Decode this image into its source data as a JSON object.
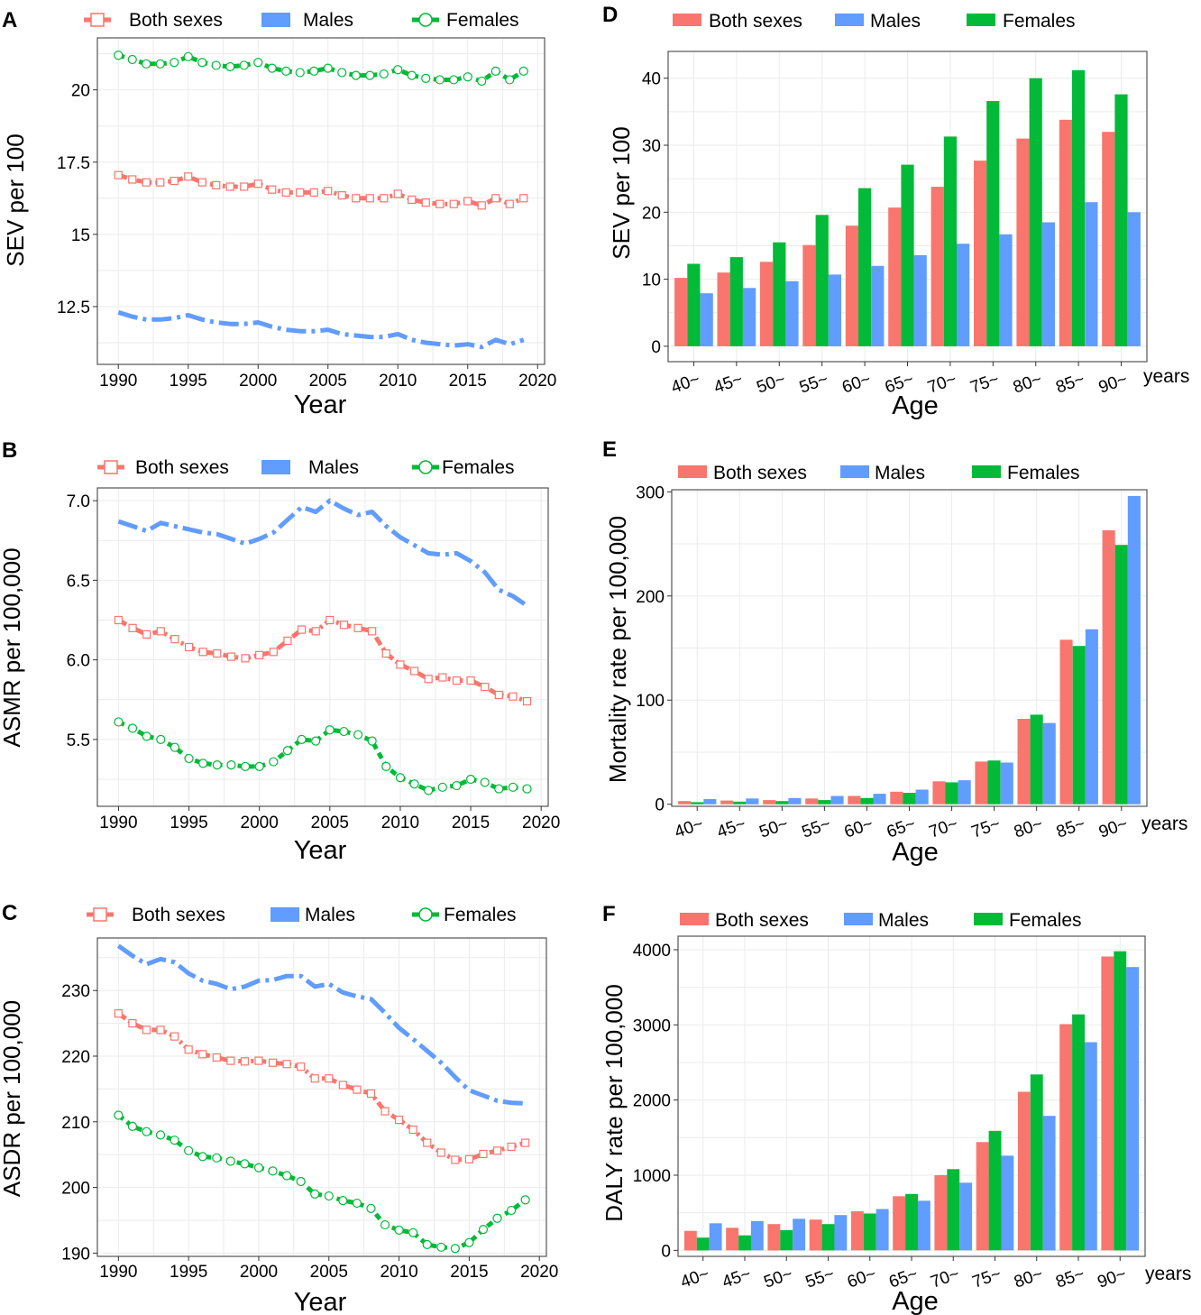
{
  "colors": {
    "both": "#F8766D",
    "males": "#619CFF",
    "females": "#00BA38"
  },
  "chart_data": [
    {
      "id": "A",
      "type": "line",
      "panel_label": "A",
      "title": "",
      "xlabel": "Year",
      "ylabel": "SEV per 100",
      "xlim": [
        1988.5,
        2020.5
      ],
      "ylim": [
        10.5,
        21.8
      ],
      "xticks": [
        1990,
        1995,
        2000,
        2005,
        2010,
        2015,
        2020
      ],
      "xtick_labels": [
        "1990",
        "1995",
        "2000",
        "2005",
        "2010",
        "2015",
        "2020"
      ],
      "yticks": [
        12.5,
        15,
        17.5,
        20
      ],
      "ytick_labels": [
        "12.5",
        "15",
        "17.5",
        "20"
      ],
      "legend": [
        "Both sexes",
        "Males",
        "Females"
      ],
      "x": [
        1990,
        1991,
        1992,
        1993,
        1994,
        1995,
        1996,
        1997,
        1998,
        1999,
        2000,
        2001,
        2002,
        2003,
        2004,
        2005,
        2006,
        2007,
        2008,
        2009,
        2010,
        2011,
        2012,
        2013,
        2014,
        2015,
        2016,
        2017,
        2018,
        2019
      ],
      "series": [
        {
          "name": "Both sexes",
          "values": [
            17.05,
            16.9,
            16.8,
            16.8,
            16.85,
            17.0,
            16.8,
            16.7,
            16.65,
            16.65,
            16.75,
            16.55,
            16.45,
            16.45,
            16.45,
            16.5,
            16.35,
            16.25,
            16.25,
            16.25,
            16.4,
            16.2,
            16.1,
            16.05,
            16.05,
            16.15,
            16.0,
            16.25,
            16.05,
            16.25
          ]
        },
        {
          "name": "Males",
          "values": [
            12.3,
            12.15,
            12.05,
            12.05,
            12.1,
            12.2,
            12.05,
            11.95,
            11.9,
            11.9,
            11.95,
            11.8,
            11.7,
            11.65,
            11.65,
            11.7,
            11.55,
            11.5,
            11.45,
            11.45,
            11.55,
            11.35,
            11.25,
            11.2,
            11.15,
            11.2,
            11.1,
            11.35,
            11.2,
            11.35
          ]
        },
        {
          "name": "Females",
          "values": [
            21.2,
            21.05,
            20.9,
            20.9,
            20.95,
            21.15,
            20.95,
            20.85,
            20.8,
            20.85,
            20.95,
            20.75,
            20.65,
            20.6,
            20.65,
            20.75,
            20.6,
            20.5,
            20.5,
            20.55,
            20.7,
            20.5,
            20.4,
            20.35,
            20.35,
            20.45,
            20.3,
            20.65,
            20.35,
            20.65
          ]
        }
      ]
    },
    {
      "id": "B",
      "type": "line",
      "panel_label": "B",
      "title": "",
      "xlabel": "Year",
      "ylabel": "ASMR per 100,000",
      "xlim": [
        1988.5,
        2020.5
      ],
      "ylim": [
        5.08,
        7.08
      ],
      "xticks": [
        1990,
        1995,
        2000,
        2005,
        2010,
        2015,
        2020
      ],
      "xtick_labels": [
        "1990",
        "1995",
        "2000",
        "2005",
        "2010",
        "2015",
        "2020"
      ],
      "yticks": [
        5.5,
        6.0,
        6.5,
        7.0
      ],
      "ytick_labels": [
        "5.5",
        "6.0",
        "6.5",
        "7.0"
      ],
      "legend": [
        "Both sexes",
        "Males",
        "Females"
      ],
      "x": [
        1990,
        1991,
        1992,
        1993,
        1994,
        1995,
        1996,
        1997,
        1998,
        1999,
        2000,
        2001,
        2002,
        2003,
        2004,
        2005,
        2006,
        2007,
        2008,
        2009,
        2010,
        2011,
        2012,
        2013,
        2014,
        2015,
        2016,
        2017,
        2018,
        2019
      ],
      "series": [
        {
          "name": "Both sexes",
          "values": [
            6.25,
            6.2,
            6.16,
            6.18,
            6.13,
            6.08,
            6.05,
            6.04,
            6.02,
            6.01,
            6.03,
            6.05,
            6.12,
            6.19,
            6.18,
            6.25,
            6.22,
            6.2,
            6.18,
            6.04,
            5.97,
            5.93,
            5.88,
            5.89,
            5.87,
            5.87,
            5.83,
            5.78,
            5.77,
            5.74
          ]
        },
        {
          "name": "Males",
          "values": [
            6.87,
            6.84,
            6.81,
            6.86,
            6.84,
            6.82,
            6.8,
            6.79,
            6.76,
            6.73,
            6.76,
            6.8,
            6.88,
            6.96,
            6.93,
            7.0,
            6.95,
            6.91,
            6.93,
            6.84,
            6.77,
            6.72,
            6.67,
            6.66,
            6.67,
            6.62,
            6.55,
            6.44,
            6.4,
            6.34
          ]
        },
        {
          "name": "Females",
          "values": [
            5.61,
            5.57,
            5.52,
            5.5,
            5.45,
            5.38,
            5.35,
            5.34,
            5.34,
            5.33,
            5.33,
            5.36,
            5.43,
            5.5,
            5.49,
            5.56,
            5.55,
            5.53,
            5.49,
            5.33,
            5.26,
            5.22,
            5.18,
            5.2,
            5.21,
            5.25,
            5.23,
            5.19,
            5.2,
            5.19
          ]
        }
      ]
    },
    {
      "id": "C",
      "type": "line",
      "panel_label": "C",
      "title": "",
      "xlabel": "Year",
      "ylabel": "ASDR per 100,000",
      "xlim": [
        1988.5,
        2020.5
      ],
      "ylim": [
        189.5,
        238
      ],
      "xticks": [
        1990,
        1995,
        2000,
        2005,
        2010,
        2015,
        2020
      ],
      "xtick_labels": [
        "1990",
        "1995",
        "2000",
        "2005",
        "2010",
        "2015",
        "2020"
      ],
      "yticks": [
        190,
        200,
        210,
        220,
        230
      ],
      "ytick_labels": [
        "190",
        "200",
        "210",
        "220",
        "230"
      ],
      "legend": [
        "Both sexes",
        "Males",
        "Females"
      ],
      "x": [
        1990,
        1991,
        1992,
        1993,
        1994,
        1995,
        1996,
        1997,
        1998,
        1999,
        2000,
        2001,
        2002,
        2003,
        2004,
        2005,
        2006,
        2007,
        2008,
        2009,
        2010,
        2011,
        2012,
        2013,
        2014,
        2015,
        2016,
        2017,
        2018,
        2019
      ],
      "series": [
        {
          "name": "Both sexes",
          "values": [
            226.5,
            225,
            224,
            224,
            223,
            221,
            220.3,
            219.8,
            219.3,
            219.2,
            219.3,
            219,
            218.8,
            218.4,
            216.6,
            216.6,
            215.6,
            214.9,
            214.3,
            211.6,
            210.3,
            208.8,
            206.8,
            205.3,
            204.2,
            204.3,
            205.1,
            205.6,
            206.2,
            206.8
          ]
        },
        {
          "name": "Males",
          "values": [
            236.8,
            235.3,
            234,
            234.8,
            234.3,
            232.6,
            231.5,
            231,
            230.2,
            230.6,
            231.5,
            231.6,
            232.2,
            232.2,
            230.6,
            231,
            229.7,
            229.1,
            228.7,
            226.6,
            224.3,
            222.6,
            220.8,
            219,
            216.8,
            214.8,
            214,
            213.2,
            212.9,
            212.8
          ]
        },
        {
          "name": "Females",
          "values": [
            211,
            209.3,
            208.5,
            208,
            207.2,
            205.6,
            204.7,
            204.5,
            204,
            203.6,
            203,
            202.5,
            201.8,
            200.9,
            199,
            198.7,
            198,
            197.6,
            196.8,
            194.3,
            193.5,
            193.1,
            191.3,
            190.9,
            190.7,
            191.6,
            193.6,
            195.3,
            196.5,
            198.1
          ]
        }
      ]
    },
    {
      "id": "D",
      "type": "bar",
      "panel_label": "D",
      "title": "",
      "xlabel": "Age",
      "xunit": "years",
      "ylabel": "SEV per 100",
      "ylim": [
        -2.3,
        44
      ],
      "yticks": [
        0,
        10,
        20,
        30,
        40
      ],
      "ytick_labels": [
        "0",
        "10",
        "20",
        "30",
        "40"
      ],
      "categories": [
        "40~",
        "45~",
        "50~",
        "55~",
        "60~",
        "65~",
        "70~",
        "75~",
        "80~",
        "85~",
        "90~"
      ],
      "legend": [
        "Both sexes",
        "Males",
        "Females"
      ],
      "series": [
        {
          "name": "Both sexes",
          "values": [
            10.2,
            11,
            12.6,
            15.1,
            18,
            20.7,
            23.8,
            27.7,
            31,
            33.8,
            32
          ]
        },
        {
          "name": "Females",
          "values": [
            12.3,
            13.3,
            15.5,
            19.6,
            23.6,
            27.1,
            31.3,
            36.6,
            40,
            41.2,
            37.6
          ]
        },
        {
          "name": "Males",
          "values": [
            7.9,
            8.7,
            9.7,
            10.7,
            12,
            13.6,
            15.3,
            16.7,
            18.5,
            21.5,
            20
          ]
        }
      ]
    },
    {
      "id": "E",
      "type": "bar",
      "panel_label": "E",
      "title": "",
      "xlabel": "Age",
      "xunit": "years",
      "ylabel": "Mortality rate per 100,000",
      "ylim": [
        -2,
        302
      ],
      "yticks": [
        0,
        100,
        200,
        300
      ],
      "ytick_labels": [
        "0",
        "100",
        "200",
        "300"
      ],
      "categories": [
        "40~",
        "45~",
        "50~",
        "55~",
        "60~",
        "65~",
        "70~",
        "75~",
        "80~",
        "85~",
        "90~"
      ],
      "legend": [
        "Both sexes",
        "Males",
        "Females"
      ],
      "series": [
        {
          "name": "Both sexes",
          "values": [
            3,
            3.5,
            4,
            5.5,
            8,
            12,
            22,
            41,
            82,
            158,
            263
          ]
        },
        {
          "name": "Females",
          "values": [
            2,
            2.5,
            3,
            4,
            6,
            11,
            21,
            42,
            86,
            152,
            249
          ]
        },
        {
          "name": "Males",
          "values": [
            5,
            5.5,
            6,
            8,
            10,
            14,
            23,
            40,
            78,
            168,
            296
          ]
        }
      ]
    },
    {
      "id": "F",
      "type": "bar",
      "panel_label": "F",
      "title": "",
      "xlabel": "Age",
      "xunit": "years",
      "ylabel": "DALY rate per 100,000",
      "ylim": [
        -80,
        4180
      ],
      "yticks": [
        0,
        1000,
        2000,
        3000,
        4000
      ],
      "ytick_labels": [
        "0",
        "1000",
        "2000",
        "3000",
        "4000"
      ],
      "categories": [
        "40~",
        "45~",
        "50~",
        "55~",
        "60~",
        "65~",
        "70~",
        "75~",
        "80~",
        "85~",
        "90~"
      ],
      "legend": [
        "Both sexes",
        "Males",
        "Females"
      ],
      "series": [
        {
          "name": "Both sexes",
          "values": [
            260,
            300,
            350,
            410,
            520,
            720,
            1000,
            1440,
            2110,
            3010,
            3910
          ]
        },
        {
          "name": "Females",
          "values": [
            170,
            200,
            270,
            350,
            490,
            750,
            1080,
            1590,
            2340,
            3140,
            3980
          ]
        },
        {
          "name": "Males",
          "values": [
            360,
            390,
            420,
            470,
            550,
            660,
            900,
            1260,
            1790,
            2770,
            3770
          ]
        }
      ]
    }
  ]
}
